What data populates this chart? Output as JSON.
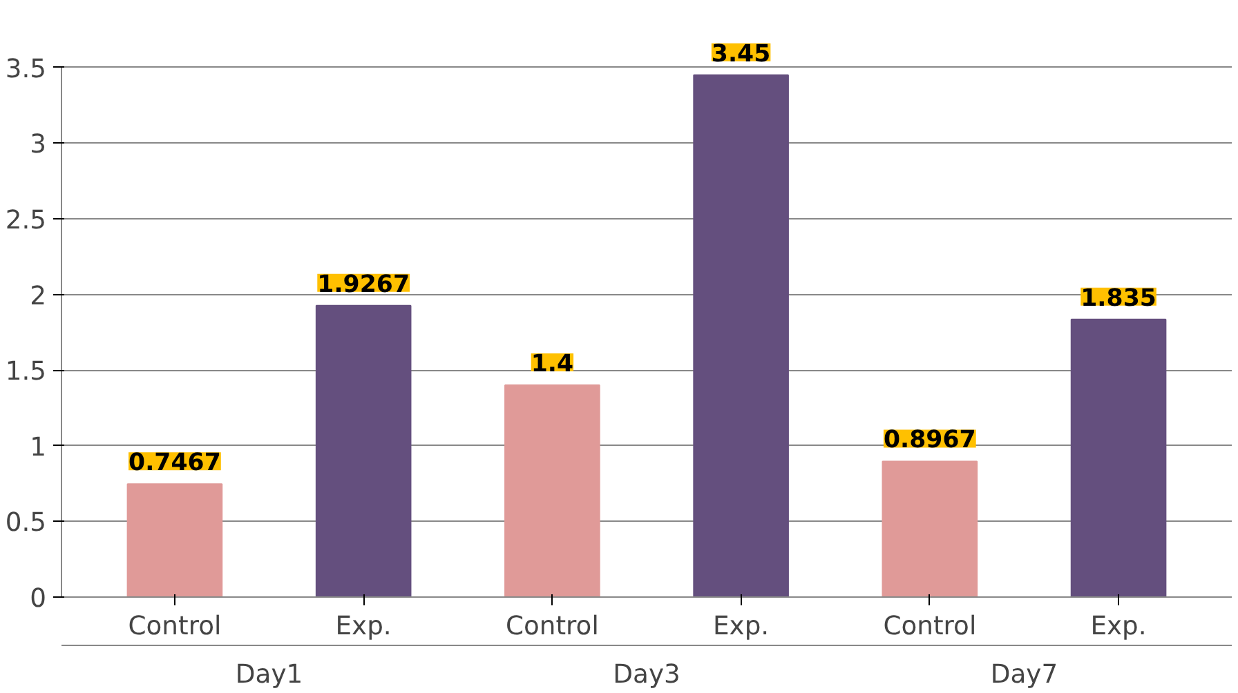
{
  "chart_data": {
    "type": "bar",
    "categories": [
      "Control",
      "Exp.",
      "Control",
      "Exp.",
      "Control",
      "Exp."
    ],
    "values": [
      0.7467,
      1.9267,
      1.4,
      3.45,
      0.8967,
      1.835
    ],
    "colors": [
      "#e09a98",
      "#644f7e",
      "#e09a98",
      "#644f7e",
      "#e09a98",
      "#644f7e"
    ],
    "ylim": [
      0,
      3.5
    ],
    "yticks": [
      0,
      0.5,
      1,
      1.5,
      2,
      2.5,
      3,
      3.5
    ],
    "annotations": [
      "Day1",
      "Day3",
      "Day7"
    ],
    "grid": "y",
    "data_labels": true
  }
}
